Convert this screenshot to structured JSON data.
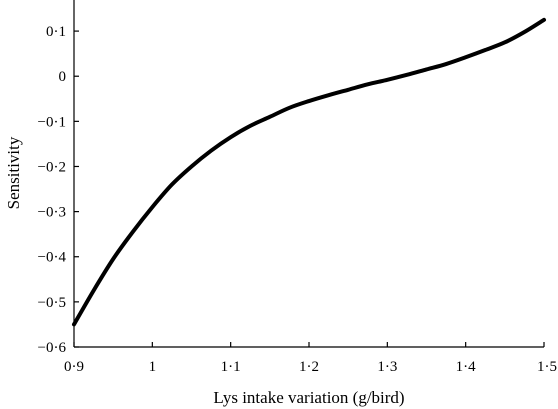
{
  "chart_data": {
    "type": "line",
    "title": "",
    "xlabel": "Lys intake variation (g/bird)",
    "ylabel": "Sensitivity",
    "xlim": [
      0.9,
      1.5
    ],
    "ylim": [
      -0.6,
      0.15
    ],
    "x_ticks": [
      0.9,
      1.0,
      1.1,
      1.2,
      1.3,
      1.4,
      1.5
    ],
    "x_tick_labels": [
      "0·9",
      "1",
      "1·1",
      "1·2",
      "1·3",
      "1·4",
      "1·5"
    ],
    "y_ticks": [
      -0.6,
      -0.5,
      -0.4,
      -0.3,
      -0.2,
      -0.1,
      0,
      0.1
    ],
    "y_tick_labels": [
      "−0·6",
      "−0·5",
      "−0·4",
      "−0·3",
      "−0·2",
      "−0·1",
      "0",
      "0·1"
    ],
    "grid": false,
    "line_color": "#000000",
    "series": [
      {
        "x": [
          0.9,
          0.925,
          0.95,
          0.975,
          1.0,
          1.025,
          1.05,
          1.075,
          1.1,
          1.125,
          1.15,
          1.175,
          1.2,
          1.225,
          1.25,
          1.275,
          1.3,
          1.325,
          1.35,
          1.375,
          1.4,
          1.425,
          1.45,
          1.475,
          1.5
        ],
        "y": [
          -0.55,
          -0.475,
          -0.405,
          -0.345,
          -0.29,
          -0.24,
          -0.2,
          -0.165,
          -0.135,
          -0.11,
          -0.09,
          -0.07,
          -0.055,
          -0.042,
          -0.03,
          -0.018,
          -0.008,
          0.003,
          0.015,
          0.027,
          0.042,
          0.058,
          0.075,
          0.098,
          0.125
        ]
      }
    ]
  }
}
